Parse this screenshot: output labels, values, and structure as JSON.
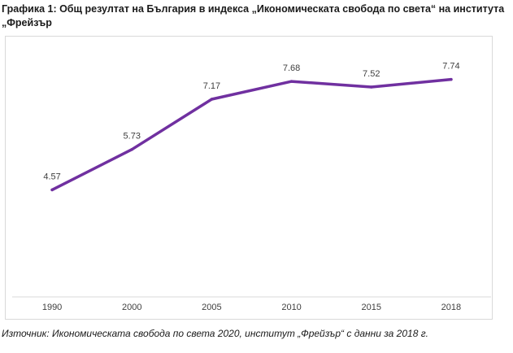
{
  "figure": {
    "title": "Графика 1: Общ резултат на България в индекса „Икономическата свобода по света“ на института „Фрейзър",
    "source": "Източник: Икономическата свобода по света 2020, институт „Фрейзър“ с данни за 2018 г."
  },
  "chart_data": {
    "type": "line",
    "title": "",
    "xlabel": "",
    "ylabel": "",
    "categories": [
      "1990",
      "2000",
      "2005",
      "2010",
      "2015",
      "2018"
    ],
    "series": [
      {
        "values": [
          4.57,
          5.73,
          7.17,
          7.68,
          7.52,
          7.74
        ],
        "color": "#7030a0"
      }
    ],
    "data_labels": [
      "4.57",
      "5.73",
      "7.17",
      "7.68",
      "7.52",
      "7.74"
    ],
    "ylim": [
      1.5,
      8.5
    ],
    "grid": false,
    "legend": "none"
  }
}
